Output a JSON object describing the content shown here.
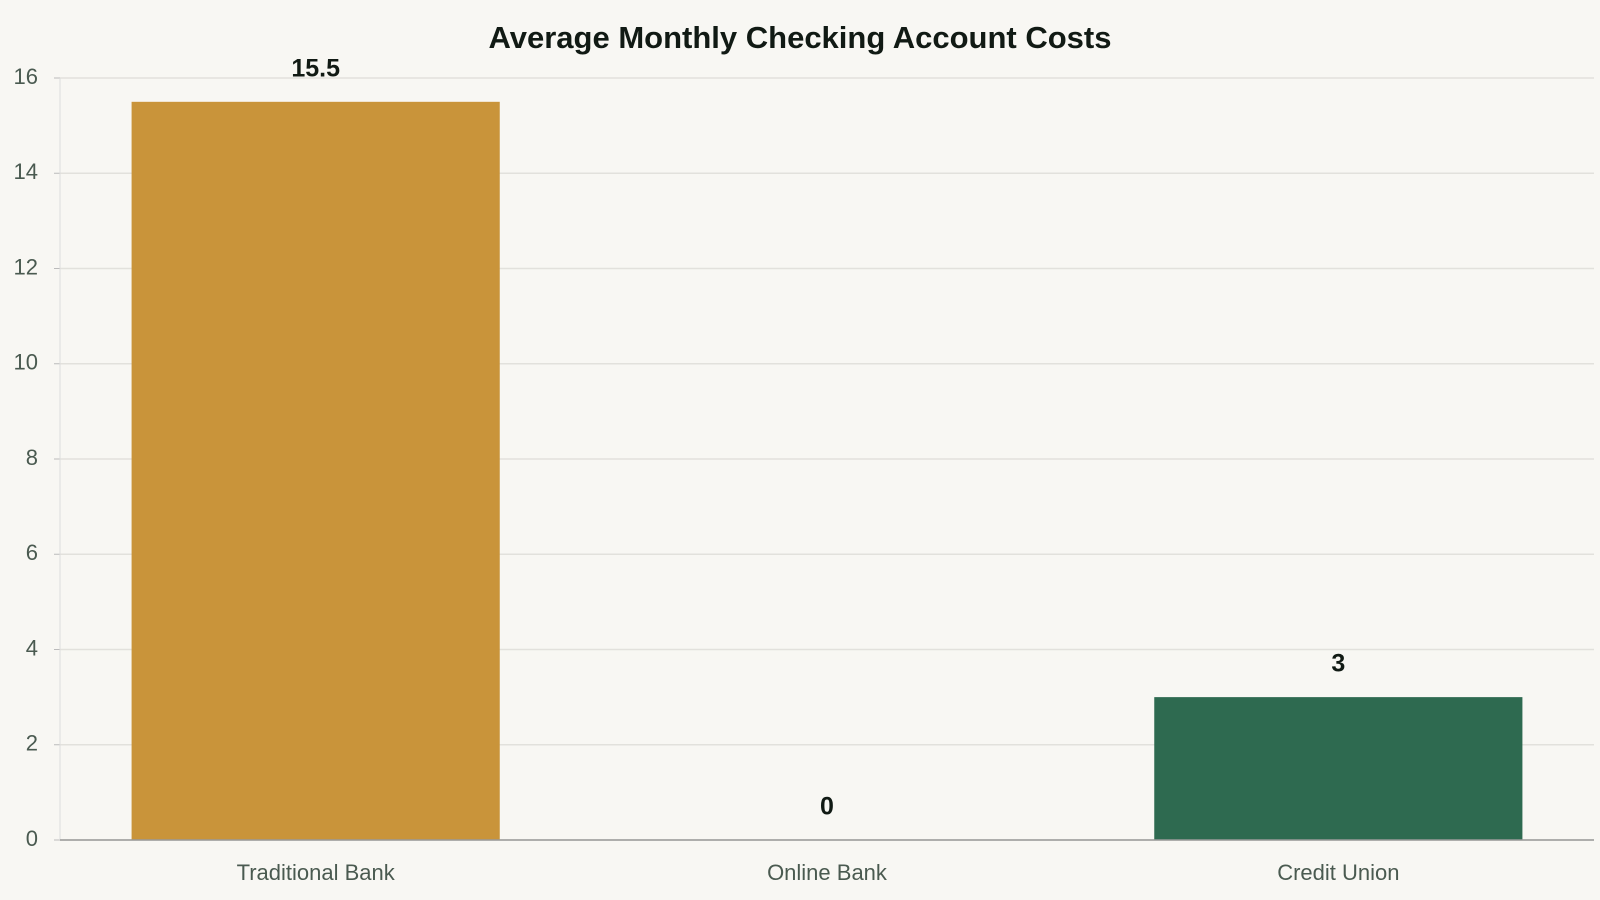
{
  "chart_data": {
    "type": "bar",
    "title": "Average Monthly Checking Account Costs",
    "categories": [
      "Traditional Bank",
      "Online Bank",
      "Credit Union"
    ],
    "values": [
      15.5,
      0,
      3
    ],
    "colors": [
      "#c9943a",
      "#4a8fa0",
      "#2e6a50"
    ],
    "ylim": [
      0,
      16
    ],
    "yticks": [
      0,
      2,
      4,
      6,
      8,
      10,
      12,
      14,
      16
    ],
    "grid": true
  }
}
